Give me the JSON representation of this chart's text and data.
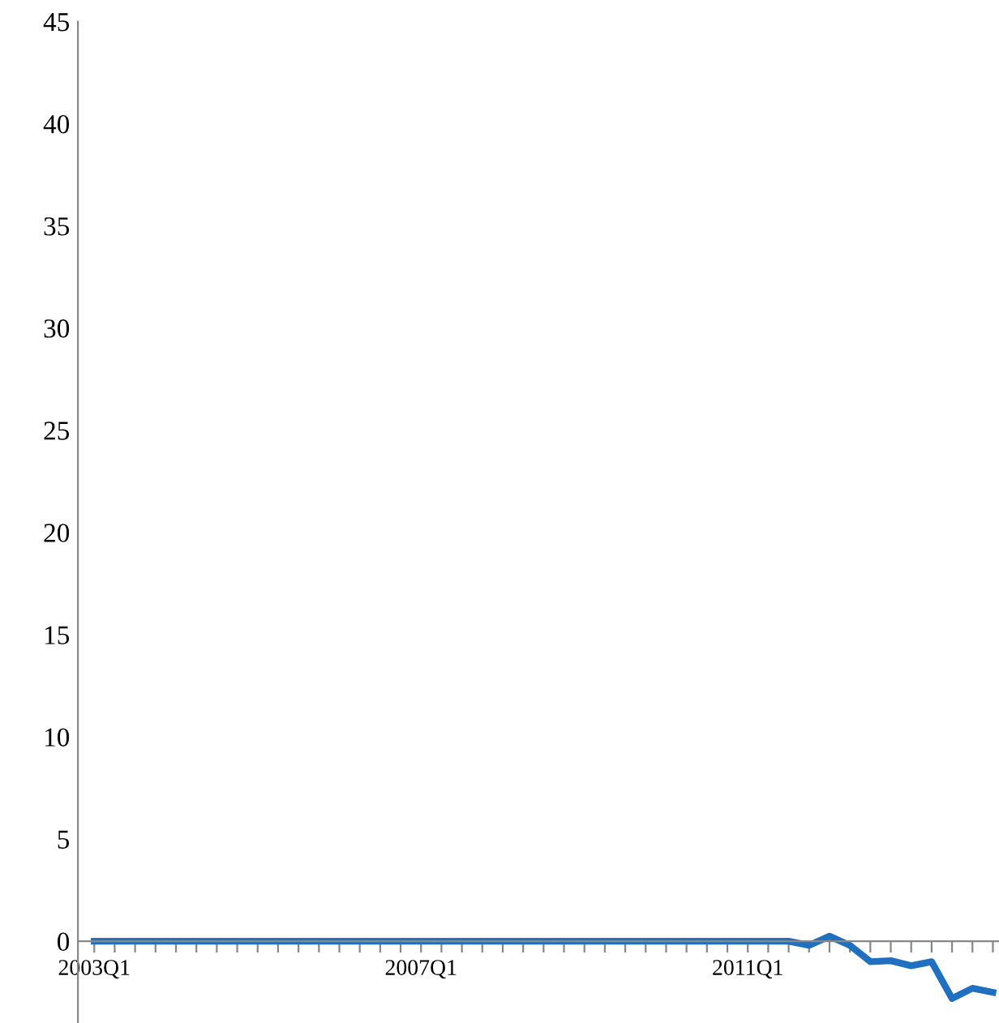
{
  "chart_data": {
    "type": "line",
    "categories": [
      "2003Q1",
      null,
      null,
      null,
      null,
      null,
      null,
      null,
      null,
      null,
      null,
      null,
      null,
      null,
      null,
      null,
      "2007Q1",
      null,
      null,
      null,
      null,
      null,
      null,
      null,
      null,
      null,
      null,
      null,
      null,
      null,
      null,
      null,
      "2011Q1",
      null,
      null,
      null,
      null,
      null,
      null,
      null,
      null,
      null,
      null,
      null,
      null
    ],
    "series": [
      {
        "color": "#1f70c1",
        "values": [
          0,
          0,
          0,
          0,
          0,
          0,
          0,
          0,
          0,
          0,
          0,
          0,
          0,
          0,
          0,
          0,
          0,
          0,
          0,
          0,
          0,
          0,
          0,
          0,
          0,
          0,
          0,
          0,
          0,
          0,
          0,
          0,
          0,
          0,
          0,
          -0.2,
          0.25,
          -0.2,
          -1.0,
          -0.95,
          -1.2,
          -1.0,
          -2.8,
          -2.3,
          -2.5
        ]
      }
    ],
    "ylim": [
      -4,
      45
    ],
    "yticks": [
      0,
      5,
      10,
      15,
      20,
      25,
      30,
      35,
      40,
      45
    ],
    "grid": false,
    "legend": false,
    "marker": "none",
    "line_style": "solid"
  }
}
